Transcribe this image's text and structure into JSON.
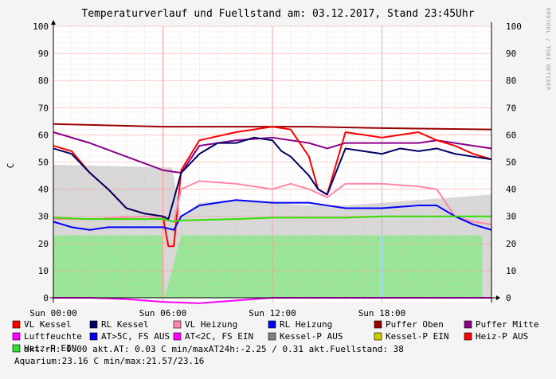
{
  "chart_data": {
    "type": "line",
    "title": "Temperaturverlauf und Fuellstand am: 03.12.2017, Stand 23:45Uhr",
    "ylabel": "C",
    "side_label": "RRDTOOL / TOBI OETIKER",
    "ylim": [
      0,
      100
    ],
    "xlim": [
      0,
      24
    ],
    "y_ticks": [
      0,
      10,
      20,
      30,
      40,
      50,
      60,
      70,
      80,
      90,
      100
    ],
    "x_ticks": [
      {
        "x": 0,
        "label": "Sun 00:00"
      },
      {
        "x": 6,
        "label": "Sun 06:00"
      },
      {
        "x": 12,
        "label": "Sun 12:00"
      },
      {
        "x": 18,
        "label": "Sun 18:00"
      }
    ],
    "grid": true,
    "colors": {
      "vl_kessel": "#ff0000",
      "rl_kessel": "#000066",
      "vl_heizung": "#ff88aa",
      "rl_heizung": "#0000ff",
      "puffer_oben": "#990000",
      "puffer_mitte": "#8b008b",
      "luftfeuchte": "#ff00ff",
      "kessel_p_aus": "#d8d8d8",
      "heiz_p_ein": "#99e699",
      "green_line": "#33dd00",
      "grid": "#ff9999",
      "aquarium": "#a8e0e0"
    },
    "areas": [
      {
        "name": "Kessel-P AUS",
        "color": "#d8d8d8",
        "x": [
          0,
          6.5,
          7,
          8,
          10,
          12,
          14,
          16,
          20,
          24
        ],
        "y": [
          49,
          48,
          30,
          35,
          36,
          35,
          34,
          34,
          36,
          38
        ]
      },
      {
        "name": "Heiz-P EIN",
        "color": "#99e699",
        "x": [
          0,
          6,
          6.1,
          7,
          23.5,
          23.5
        ],
        "y": [
          23,
          23,
          0,
          23,
          23,
          0
        ]
      }
    ],
    "series": [
      {
        "name": "Puffer Oben",
        "color": "#990000",
        "x": [
          0,
          6,
          12,
          14,
          18,
          24
        ],
        "y": [
          64,
          63,
          63,
          63,
          62.5,
          62
        ]
      },
      {
        "name": "Puffer Mitte",
        "color": "#8b008b",
        "x": [
          0,
          2,
          4,
          6,
          7,
          8,
          10,
          12,
          14,
          15,
          16,
          18,
          20,
          21,
          22,
          24
        ],
        "y": [
          61,
          57,
          52,
          47,
          46,
          56,
          58,
          59,
          57,
          55,
          57,
          57,
          57,
          58,
          57,
          55
        ]
      },
      {
        "name": "VL Kessel",
        "color": "#ff0000",
        "x": [
          0,
          1,
          2,
          3,
          4,
          5,
          6,
          6.3,
          6.6,
          7,
          8,
          10,
          12,
          13,
          14,
          14.5,
          15,
          16,
          17,
          18,
          19,
          20,
          21,
          22,
          23,
          24
        ],
        "y": [
          56,
          54,
          46,
          40,
          33,
          31,
          30,
          19,
          19,
          47,
          58,
          61,
          63,
          62,
          52,
          40,
          38,
          61,
          60,
          59,
          60,
          61,
          58,
          56,
          53,
          51
        ]
      },
      {
        "name": "RL Kessel",
        "color": "#000066",
        "x": [
          0,
          1,
          2,
          3,
          4,
          5,
          6,
          6.3,
          7,
          8,
          9,
          10,
          11,
          12,
          12.5,
          13,
          14,
          14.5,
          15,
          16,
          17,
          18,
          19,
          20,
          21,
          22,
          23,
          24
        ],
        "y": [
          55,
          53,
          46,
          40,
          33,
          31,
          30,
          29,
          46,
          53,
          57,
          57,
          59,
          58,
          54,
          52,
          45,
          40,
          38,
          55,
          54,
          53,
          55,
          54,
          55,
          53,
          52,
          51
        ]
      },
      {
        "name": "VL Heizung",
        "color": "#ff88aa",
        "x": [
          0,
          2,
          5,
          6,
          6.6,
          7,
          8,
          10,
          12,
          13,
          14,
          15,
          16,
          18,
          20,
          21,
          22,
          23,
          24
        ],
        "y": [
          29,
          29,
          30,
          29,
          28,
          40,
          43,
          42,
          40,
          42,
          40,
          37,
          42,
          42,
          41,
          40,
          30,
          28,
          27
        ]
      },
      {
        "name": "RL Heizung",
        "color": "#0000ff",
        "x": [
          0,
          1,
          2,
          3,
          4,
          5,
          6,
          6.6,
          7,
          8,
          10,
          12,
          13,
          14,
          15,
          16,
          18,
          20,
          21,
          22,
          23,
          24
        ],
        "y": [
          28,
          26,
          25,
          26,
          26,
          26,
          26,
          25,
          30,
          34,
          36,
          35,
          35,
          35,
          34,
          33,
          33,
          34,
          34,
          30,
          27,
          25
        ]
      },
      {
        "name": "AT>5C, FS AUS",
        "color": "#33dd00",
        "x": [
          0,
          2,
          5,
          6,
          6.6,
          7,
          10,
          12,
          14,
          16,
          18,
          20,
          22,
          24
        ],
        "y": [
          29.5,
          29,
          29,
          29,
          28,
          28.5,
          29,
          29.5,
          29.5,
          29.5,
          30,
          30,
          30,
          30
        ]
      },
      {
        "name": "Luftfeuchte",
        "color": "#ff00ff",
        "x": [
          0,
          2,
          4,
          6,
          8,
          10,
          12,
          14,
          16,
          18,
          20,
          22,
          24
        ],
        "y": [
          0,
          0,
          -0.5,
          -1.5,
          -2,
          -1,
          0,
          0,
          0,
          0,
          0,
          0,
          0
        ]
      }
    ],
    "legend": [
      {
        "label": "VL Kessel",
        "color": "#ff0000"
      },
      {
        "label": "RL Kessel",
        "color": "#000066"
      },
      {
        "label": "VL Heizung",
        "color": "#ff88aa"
      },
      {
        "label": "RL Heizung",
        "color": "#0000ff"
      },
      {
        "label": "Puffer Oben",
        "color": "#990000"
      },
      {
        "label": "Puffer Mitte",
        "color": "#8b008b"
      },
      {
        "label": "Luftfeuchte",
        "color": "#ff00ff"
      },
      {
        "label": "AT>5C, FS AUS",
        "color": "#0000ff"
      },
      {
        "label": "AT<2C, FS EIN",
        "color": "#ff00ff"
      },
      {
        "label": "Kessel-P AUS",
        "color": "#808080"
      },
      {
        "label": "Kessel-P EIN",
        "color": "#cccc00"
      },
      {
        "label": "Heiz-P AUS",
        "color": "#ff0000"
      },
      {
        "label": "Heiz-P EIN",
        "color": "#33dd33"
      }
    ],
    "stats_line1": "akt.rH: 0.00   akt.AT: 0.03 C   min/maxAT24h:-2.25 / 0.31   akt.Fuellstand:   38",
    "stats_line2": "Aquarium:23.16 C  min/max:21.57/23.16"
  }
}
